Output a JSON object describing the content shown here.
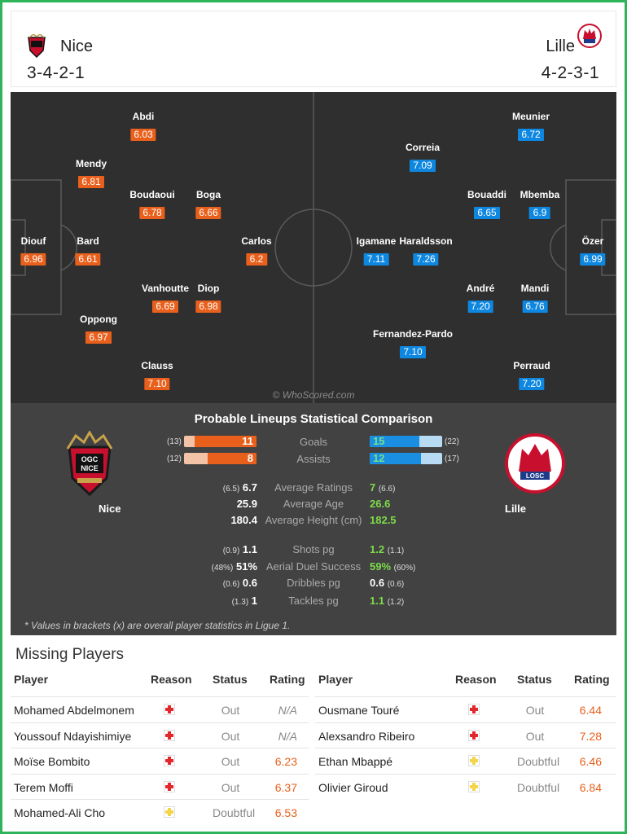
{
  "header": {
    "home": {
      "name": "Nice",
      "formation": "3-4-2-1"
    },
    "away": {
      "name": "Lille",
      "formation": "4-2-3-1"
    }
  },
  "pitch": {
    "watermark": "© WhoScored.com",
    "home_players": [
      {
        "name": "Diouf",
        "rating": "6.96"
      },
      {
        "name": "Abdi",
        "rating": "6.03"
      },
      {
        "name": "Mendy",
        "rating": "6.81"
      },
      {
        "name": "Bard",
        "rating": "6.61"
      },
      {
        "name": "Oppong",
        "rating": "6.97"
      },
      {
        "name": "Boudaoui",
        "rating": "6.78"
      },
      {
        "name": "Boga",
        "rating": "6.66"
      },
      {
        "name": "Vanhoutte",
        "rating": "6.69"
      },
      {
        "name": "Diop",
        "rating": "6.98"
      },
      {
        "name": "Clauss",
        "rating": "7.10"
      },
      {
        "name": "Carlos",
        "rating": "6.2"
      }
    ],
    "away_players": [
      {
        "name": "Meunier",
        "rating": "6.72"
      },
      {
        "name": "Correia",
        "rating": "7.09"
      },
      {
        "name": "Bouaddi",
        "rating": "6.65"
      },
      {
        "name": "Mbemba",
        "rating": "6.9"
      },
      {
        "name": "Igamane",
        "rating": "7.11"
      },
      {
        "name": "Haraldsson",
        "rating": "7.26"
      },
      {
        "name": "Özer",
        "rating": "6.99"
      },
      {
        "name": "André",
        "rating": "7.20"
      },
      {
        "name": "Mandi",
        "rating": "6.76"
      },
      {
        "name": "Fernandez-Pardo",
        "rating": "7.10"
      },
      {
        "name": "Perraud",
        "rating": "7.20"
      }
    ]
  },
  "comparison": {
    "title": "Probable Lineups Statistical Comparison",
    "home_team": "Nice",
    "away_team": "Lille",
    "bars": [
      {
        "label": "Goals",
        "home": "11",
        "home_overall": "(13)",
        "home_fraction": 0.85,
        "away": "15",
        "away_overall": "(22)",
        "away_fraction": 0.68
      },
      {
        "label": "Assists",
        "home": "8",
        "home_overall": "(12)",
        "home_fraction": 0.67,
        "away": "12",
        "away_overall": "(17)",
        "away_fraction": 0.71
      }
    ],
    "stats": [
      {
        "label": "Average Ratings",
        "home": "6.7",
        "home_overall": "(6.5)",
        "away": "7",
        "away_overall": "(6.6)"
      },
      {
        "label": "Average Age",
        "home": "25.9",
        "home_overall": "",
        "away": "26.6",
        "away_overall": ""
      },
      {
        "label": "Average Height (cm)",
        "home": "180.4",
        "home_overall": "",
        "away": "182.5",
        "away_overall": ""
      },
      {
        "label": "Shots pg",
        "home": "1.1",
        "home_overall": "(0.9)",
        "away": "1.2",
        "away_overall": "(1.1)"
      },
      {
        "label": "Aerial Duel Success",
        "home": "51%",
        "home_overall": "(48%)",
        "away": "59%",
        "away_overall": "(60%)"
      },
      {
        "label": "Dribbles pg",
        "home": "0.6",
        "home_overall": "(0.6)",
        "away": "0.6",
        "away_overall": "(0.6)"
      },
      {
        "label": "Tackles pg",
        "home": "1",
        "home_overall": "(1.3)",
        "away": "1.1",
        "away_overall": "(1.2)"
      }
    ],
    "footnote": "* Values in brackets (x) are overall player statistics in Ligue 1."
  },
  "missing": {
    "title": "Missing Players",
    "columns": [
      "Player",
      "Reason",
      "Status",
      "Rating"
    ],
    "home": [
      {
        "player": "Mohamed Abdelmonem",
        "reason": "injury-icon",
        "status": "Out",
        "rating": "N/A"
      },
      {
        "player": "Youssouf Ndayishimiye",
        "reason": "injury-icon",
        "status": "Out",
        "rating": "N/A"
      },
      {
        "player": "Moïse Bombito",
        "reason": "injury-icon",
        "status": "Out",
        "rating": "6.23"
      },
      {
        "player": "Terem Moffi",
        "reason": "injury-icon",
        "status": "Out",
        "rating": "6.37"
      },
      {
        "player": "Mohamed-Ali Cho",
        "reason": "doubtful-icon",
        "status": "Doubtful",
        "rating": "6.53"
      }
    ],
    "away": [
      {
        "player": "Ousmane Touré",
        "reason": "injury-icon",
        "status": "Out",
        "rating": "6.44"
      },
      {
        "player": "Alexsandro Ribeiro",
        "reason": "injury-icon",
        "status": "Out",
        "rating": "7.28"
      },
      {
        "player": "Ethan Mbappé",
        "reason": "doubtful-icon",
        "status": "Doubtful",
        "rating": "6.46"
      },
      {
        "player": "Olivier Giroud",
        "reason": "doubtful-icon",
        "status": "Doubtful",
        "rating": "6.84"
      }
    ]
  },
  "colors": {
    "home": "#e8601c",
    "away": "#0e87e0",
    "frame": "#2fb45a"
  }
}
